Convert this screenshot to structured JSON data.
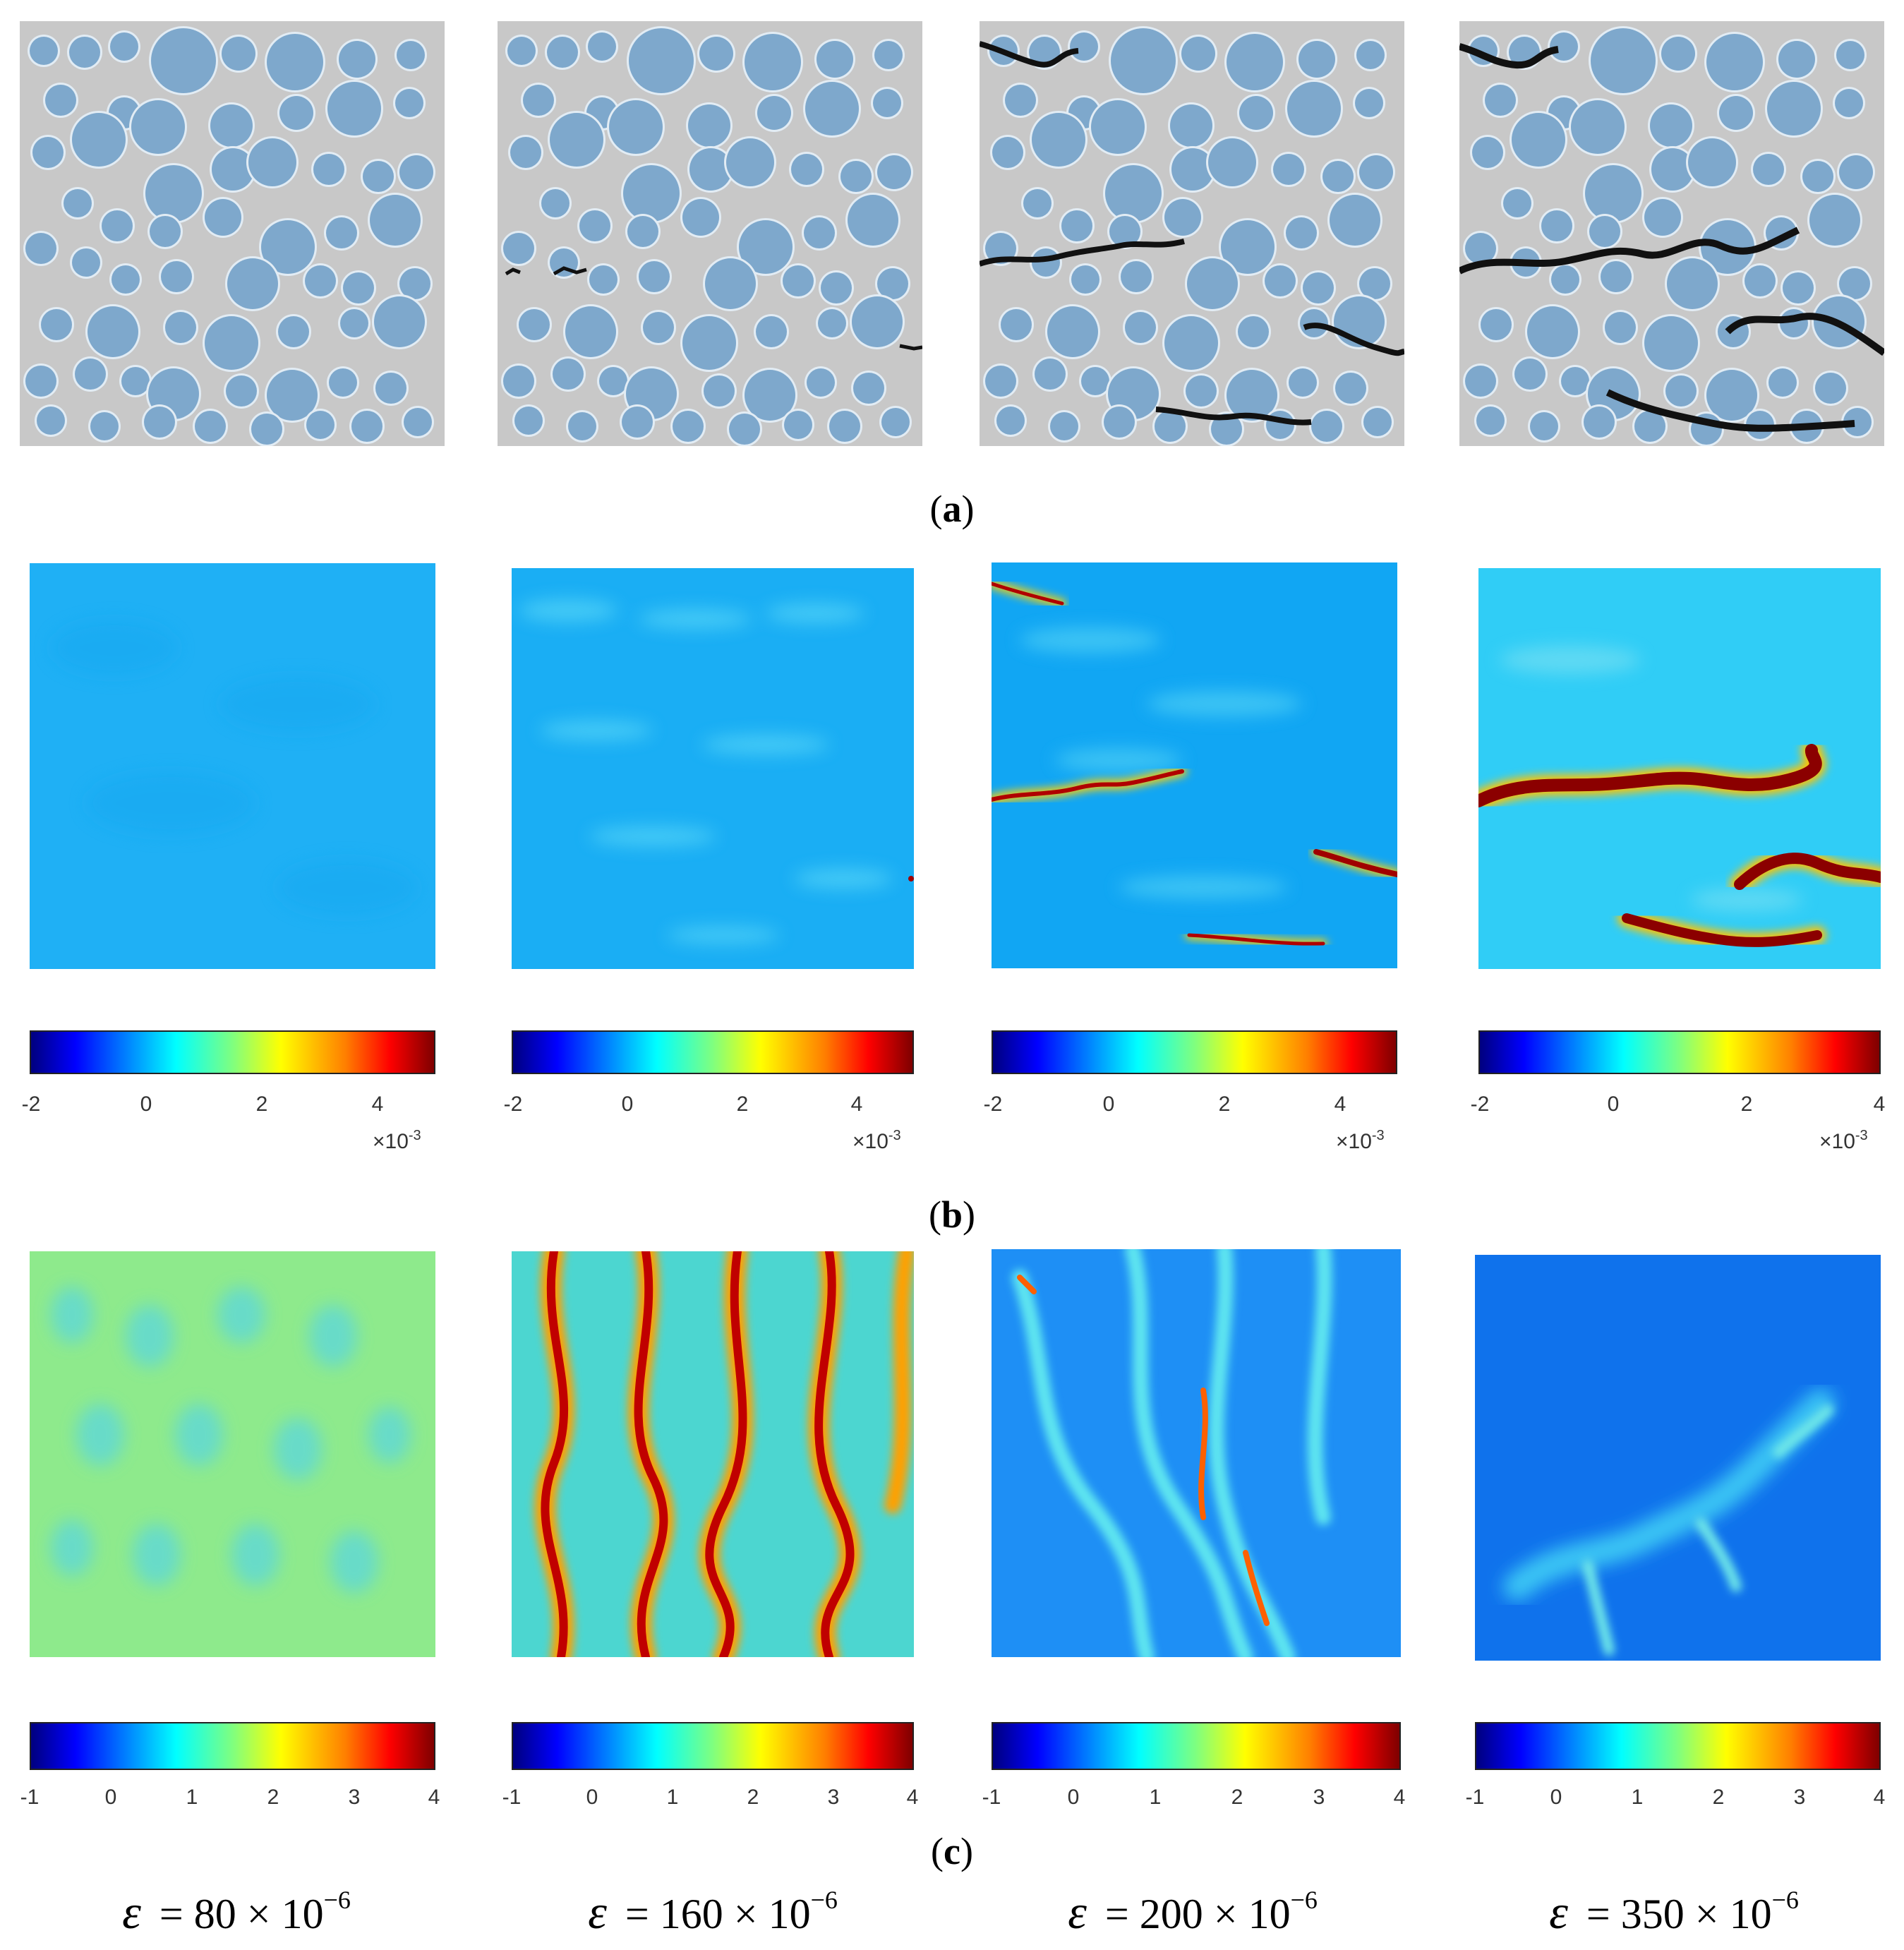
{
  "figure": {
    "row_labels": [
      "a",
      "b",
      "c"
    ],
    "strain_symbol": "ε",
    "strain_captions": [
      {
        "prefix": "= 80 × 10",
        "exponent": "−6"
      },
      {
        "prefix": "= 160 × 10",
        "exponent": "−6"
      },
      {
        "prefix": "= 200 × 10",
        "exponent": "−6"
      },
      {
        "prefix": "= 350 × 10",
        "exponent": "−6"
      }
    ]
  },
  "colors": {
    "matrix": "#c8c8c8",
    "aggregate": "#7ea8cc",
    "itz": "#e2ecf4",
    "crack": "#111111",
    "jet": [
      "#00007f",
      "#0000ff",
      "#007fff",
      "#00ffff",
      "#7fff7f",
      "#ffff00",
      "#ff7f00",
      "#ff0000",
      "#7f0000"
    ]
  },
  "chart_data": [
    {
      "type": "heatmap",
      "row": "b",
      "strain": "80 × 10−6",
      "colorbar_ticks": [
        "-2",
        "0",
        "2",
        "4"
      ],
      "vlim": [
        -2,
        5
      ],
      "multiplier": {
        "base": "×10",
        "exp": "-3"
      }
    },
    {
      "type": "heatmap",
      "row": "b",
      "strain": "160 × 10−6",
      "colorbar_ticks": [
        "-2",
        "0",
        "2",
        "4"
      ],
      "vlim": [
        -2,
        5
      ],
      "multiplier": {
        "base": "×10",
        "exp": "-3"
      }
    },
    {
      "type": "heatmap",
      "row": "b",
      "strain": "200 × 10−6",
      "colorbar_ticks": [
        "-2",
        "0",
        "2",
        "4"
      ],
      "vlim": [
        -2,
        5
      ],
      "multiplier": {
        "base": "×10",
        "exp": "-3"
      }
    },
    {
      "type": "heatmap",
      "row": "b",
      "strain": "350 × 10−6",
      "colorbar_ticks": [
        "-2",
        "0",
        "2",
        "4"
      ],
      "vlim": [
        -2,
        4
      ],
      "multiplier": {
        "base": "×10",
        "exp": "-3"
      }
    },
    {
      "type": "heatmap",
      "row": "c",
      "strain": "80 × 10−6",
      "colorbar_ticks": [
        "-1",
        "0",
        "1",
        "2",
        "3",
        "4"
      ],
      "vlim": [
        -1,
        4
      ]
    },
    {
      "type": "heatmap",
      "row": "c",
      "strain": "160 × 10−6",
      "colorbar_ticks": [
        "-1",
        "0",
        "1",
        "2",
        "3",
        "4"
      ],
      "vlim": [
        -1,
        4
      ]
    },
    {
      "type": "heatmap",
      "row": "c",
      "strain": "200 × 10−6",
      "colorbar_ticks": [
        "-1",
        "0",
        "1",
        "2",
        "3",
        "4"
      ],
      "vlim": [
        -1,
        4
      ]
    },
    {
      "type": "heatmap",
      "row": "c",
      "strain": "350 × 10−6",
      "colorbar_ticks": [
        "-1",
        "0",
        "1",
        "2",
        "3",
        "4"
      ],
      "vlim": [
        -1,
        4
      ]
    }
  ]
}
